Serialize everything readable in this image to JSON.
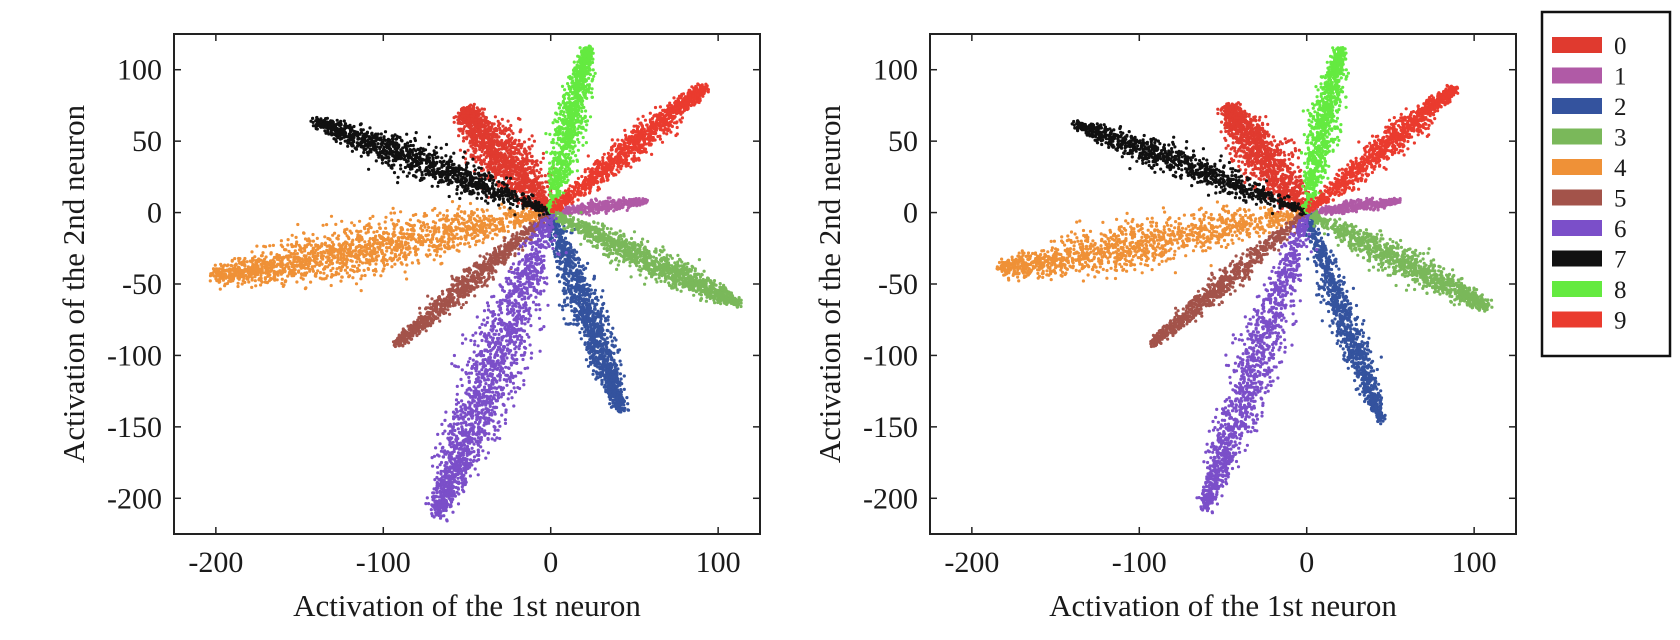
{
  "chart_data": [
    {
      "type": "scatter",
      "title": "",
      "xlabel": "Activation of the 1st neuron",
      "ylabel": "Activation of the 2nd neuron",
      "xlim": [
        -225,
        125
      ],
      "ylim": [
        -225,
        125
      ],
      "xticks": [
        -200,
        -100,
        0,
        100
      ],
      "yticks": [
        100,
        50,
        0,
        -50,
        -100,
        -150,
        -200
      ],
      "grid": false,
      "series": [
        {
          "name": "0",
          "color": "#e03a2f",
          "tip": [
            -52,
            72
          ],
          "width": 11,
          "count": 1400
        },
        {
          "name": "1",
          "color": "#b05aa6",
          "tip": [
            57,
            8
          ],
          "width": 3,
          "count": 400
        },
        {
          "name": "2",
          "color": "#34539e",
          "tip": [
            42,
            -137
          ],
          "width": 7,
          "count": 1300
        },
        {
          "name": "3",
          "color": "#7ab85a",
          "tip": [
            112,
            -64
          ],
          "width": 7,
          "count": 1300
        },
        {
          "name": "4",
          "color": "#ef9137",
          "tip": [
            -200,
            -45
          ],
          "width": 12,
          "count": 1700
        },
        {
          "name": "5",
          "color": "#a3534a",
          "tip": [
            -92,
            -92
          ],
          "width": 5,
          "count": 900
        },
        {
          "name": "6",
          "color": "#7b4fc9",
          "tip": [
            -67,
            -210
          ],
          "width": 12,
          "count": 1800
        },
        {
          "name": "7",
          "color": "#111111",
          "tip": [
            -140,
            64
          ],
          "width": 8,
          "count": 1200
        },
        {
          "name": "8",
          "color": "#64ea40",
          "tip": [
            22,
            115
          ],
          "width": 6,
          "count": 1000
        },
        {
          "name": "9",
          "color": "#ea3b2e",
          "tip": [
            92,
            88
          ],
          "width": 6,
          "count": 1100
        }
      ]
    },
    {
      "type": "scatter",
      "title": "",
      "xlabel": "Activation of the 1st neuron",
      "ylabel": "Activation of the 2nd neuron",
      "xlim": [
        -225,
        125
      ],
      "ylim": [
        -225,
        125
      ],
      "xticks": [
        -200,
        -100,
        0,
        100
      ],
      "yticks": [
        100,
        50,
        0,
        -50,
        -100,
        -150,
        -200
      ],
      "grid": false,
      "series": [
        {
          "name": "0",
          "color": "#e03a2f",
          "tip": [
            -48,
            74
          ],
          "width": 10,
          "count": 1200
        },
        {
          "name": "1",
          "color": "#b05aa6",
          "tip": [
            55,
            8
          ],
          "width": 3,
          "count": 350
        },
        {
          "name": "2",
          "color": "#34539e",
          "tip": [
            44,
            -145
          ],
          "width": 6,
          "count": 1000
        },
        {
          "name": "3",
          "color": "#7ab85a",
          "tip": [
            108,
            -66
          ],
          "width": 7,
          "count": 1100
        },
        {
          "name": "4",
          "color": "#ef9137",
          "tip": [
            -182,
            -40
          ],
          "width": 11,
          "count": 1300
        },
        {
          "name": "5",
          "color": "#a3534a",
          "tip": [
            -92,
            -92
          ],
          "width": 5,
          "count": 800
        },
        {
          "name": "6",
          "color": "#7b4fc9",
          "tip": [
            -60,
            -205
          ],
          "width": 9,
          "count": 1300
        },
        {
          "name": "7",
          "color": "#111111",
          "tip": [
            -137,
            62
          ],
          "width": 7,
          "count": 1000
        },
        {
          "name": "8",
          "color": "#64ea40",
          "tip": [
            20,
            115
          ],
          "width": 6,
          "count": 900
        },
        {
          "name": "9",
          "color": "#ea3b2e",
          "tip": [
            88,
            87
          ],
          "width": 6,
          "count": 1000
        }
      ]
    }
  ],
  "legend": {
    "placement": "right",
    "entries": [
      {
        "label": "0",
        "color": "#e03a2f"
      },
      {
        "label": "1",
        "color": "#b05aa6"
      },
      {
        "label": "2",
        "color": "#34539e"
      },
      {
        "label": "3",
        "color": "#7ab85a"
      },
      {
        "label": "4",
        "color": "#ef9137"
      },
      {
        "label": "5",
        "color": "#a3534a"
      },
      {
        "label": "6",
        "color": "#7b4fc9"
      },
      {
        "label": "7",
        "color": "#111111"
      },
      {
        "label": "8",
        "color": "#64ea40"
      },
      {
        "label": "9",
        "color": "#ea3b2e"
      }
    ]
  }
}
